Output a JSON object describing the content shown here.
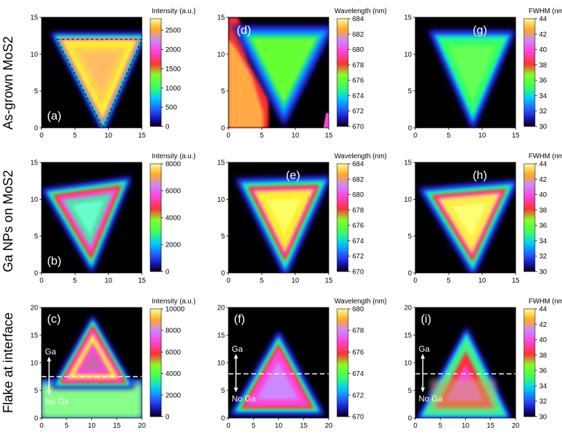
{
  "row_labels": [
    "As-grown MoS2",
    "Ga NPs on MoS2",
    "Flake at interface"
  ],
  "colors": {
    "background": "#000000",
    "scale": [
      "#000000",
      "#1a0aa0",
      "#2255ff",
      "#00ccff",
      "#33ff66",
      "#88ff22",
      "#ffee33",
      "#ffaa22",
      "#ff3333",
      "#ff44dd",
      "#cc88ff",
      "#ffff99"
    ]
  },
  "chart_data": [
    {
      "id": "a",
      "type": "heatmap",
      "panel_label": "(a)",
      "xlim": [
        0,
        15
      ],
      "ylim": [
        0,
        15
      ],
      "x_ticks": [
        0,
        5,
        10,
        15
      ],
      "y_ticks": [
        0,
        5,
        10,
        15
      ],
      "colorbar": {
        "title": "Intensity (a.u.)",
        "min": 0,
        "max": 2800,
        "ticks": [
          0,
          500,
          1000,
          1500,
          2000,
          2500
        ]
      },
      "triangle_outline": true
    },
    {
      "id": "d",
      "type": "heatmap",
      "panel_label": "(d)",
      "xlim": [
        0,
        15
      ],
      "ylim": [
        0,
        15
      ],
      "x_ticks": [
        0,
        5,
        10,
        15
      ],
      "y_ticks": [
        0,
        5,
        10,
        15
      ],
      "colorbar": {
        "title": "Wavelength (nm)",
        "min": 670,
        "max": 684,
        "ticks": [
          670,
          672,
          674,
          676,
          678,
          680,
          682,
          684
        ]
      }
    },
    {
      "id": "g",
      "type": "heatmap",
      "panel_label": "(g)",
      "xlim": [
        0,
        15
      ],
      "ylim": [
        0,
        15
      ],
      "x_ticks": [
        0,
        5,
        10,
        15
      ],
      "y_ticks": [
        0,
        5,
        10,
        15
      ],
      "colorbar": {
        "title": "FWHM (nm)",
        "min": 30,
        "max": 44,
        "ticks": [
          30,
          32,
          34,
          36,
          38,
          40,
          42,
          44
        ]
      }
    },
    {
      "id": "b",
      "type": "heatmap",
      "panel_label": "(b)",
      "xlim": [
        0,
        15
      ],
      "ylim": [
        0,
        15
      ],
      "x_ticks": [
        0,
        5,
        10,
        15
      ],
      "y_ticks": [
        0,
        5,
        10,
        15
      ],
      "colorbar": {
        "title": "Intensity (a.u.)",
        "min": 0,
        "max": 8000,
        "ticks": [
          0,
          2000,
          4000,
          6000,
          8000
        ]
      }
    },
    {
      "id": "e",
      "type": "heatmap",
      "panel_label": "(e)",
      "xlim": [
        0,
        15
      ],
      "ylim": [
        0,
        15
      ],
      "x_ticks": [
        0,
        5,
        10,
        15
      ],
      "y_ticks": [
        0,
        5,
        10,
        15
      ],
      "colorbar": {
        "title": "Wavelength (nm)",
        "min": 670,
        "max": 684,
        "ticks": [
          670,
          672,
          674,
          676,
          678,
          680,
          682,
          684
        ]
      }
    },
    {
      "id": "h",
      "type": "heatmap",
      "panel_label": "(h)",
      "xlim": [
        0,
        15
      ],
      "ylim": [
        0,
        15
      ],
      "x_ticks": [
        0,
        5,
        10,
        15
      ],
      "y_ticks": [
        0,
        5,
        10,
        15
      ],
      "colorbar": {
        "title": "FWHM (nm)",
        "min": 30,
        "max": 44,
        "ticks": [
          30,
          32,
          34,
          36,
          38,
          40,
          42,
          44
        ]
      }
    },
    {
      "id": "c",
      "type": "heatmap",
      "panel_label": "(c)",
      "xlim": [
        0,
        20
      ],
      "ylim": [
        0,
        20
      ],
      "x_ticks": [
        0,
        5,
        10,
        15,
        20
      ],
      "y_ticks": [
        0,
        5,
        10,
        15,
        20
      ],
      "colorbar": {
        "title": "Intensity (a.u.)",
        "min": 0,
        "max": 10000,
        "ticks": [
          0,
          2000,
          4000,
          6000,
          8000,
          10000
        ]
      },
      "interface_y": 7.5,
      "annotations": {
        "above": "Ga",
        "below": "No Ga"
      }
    },
    {
      "id": "f",
      "type": "heatmap",
      "panel_label": "(f)",
      "xlim": [
        0,
        20
      ],
      "ylim": [
        0,
        20
      ],
      "x_ticks": [
        0,
        5,
        10,
        15,
        20
      ],
      "y_ticks": [
        0,
        5,
        10,
        15,
        20
      ],
      "colorbar": {
        "title": "Wavelength (nm)",
        "min": 670,
        "max": 680,
        "ticks": [
          670,
          672,
          674,
          676,
          678,
          680
        ]
      },
      "interface_y": 8,
      "annotations": {
        "above": "Ga",
        "below": "No Ga"
      }
    },
    {
      "id": "i",
      "type": "heatmap",
      "panel_label": "(i)",
      "xlim": [
        0,
        20
      ],
      "ylim": [
        0,
        20
      ],
      "x_ticks": [
        0,
        5,
        10,
        15,
        20
      ],
      "y_ticks": [
        0,
        5,
        10,
        15,
        20
      ],
      "colorbar": {
        "title": "FWHM (nm)",
        "min": 30,
        "max": 44,
        "ticks": [
          30,
          32,
          34,
          36,
          38,
          40,
          42,
          44
        ]
      },
      "interface_y": 8,
      "annotations": {
        "above": "Ga",
        "below": "No Ga"
      }
    }
  ]
}
